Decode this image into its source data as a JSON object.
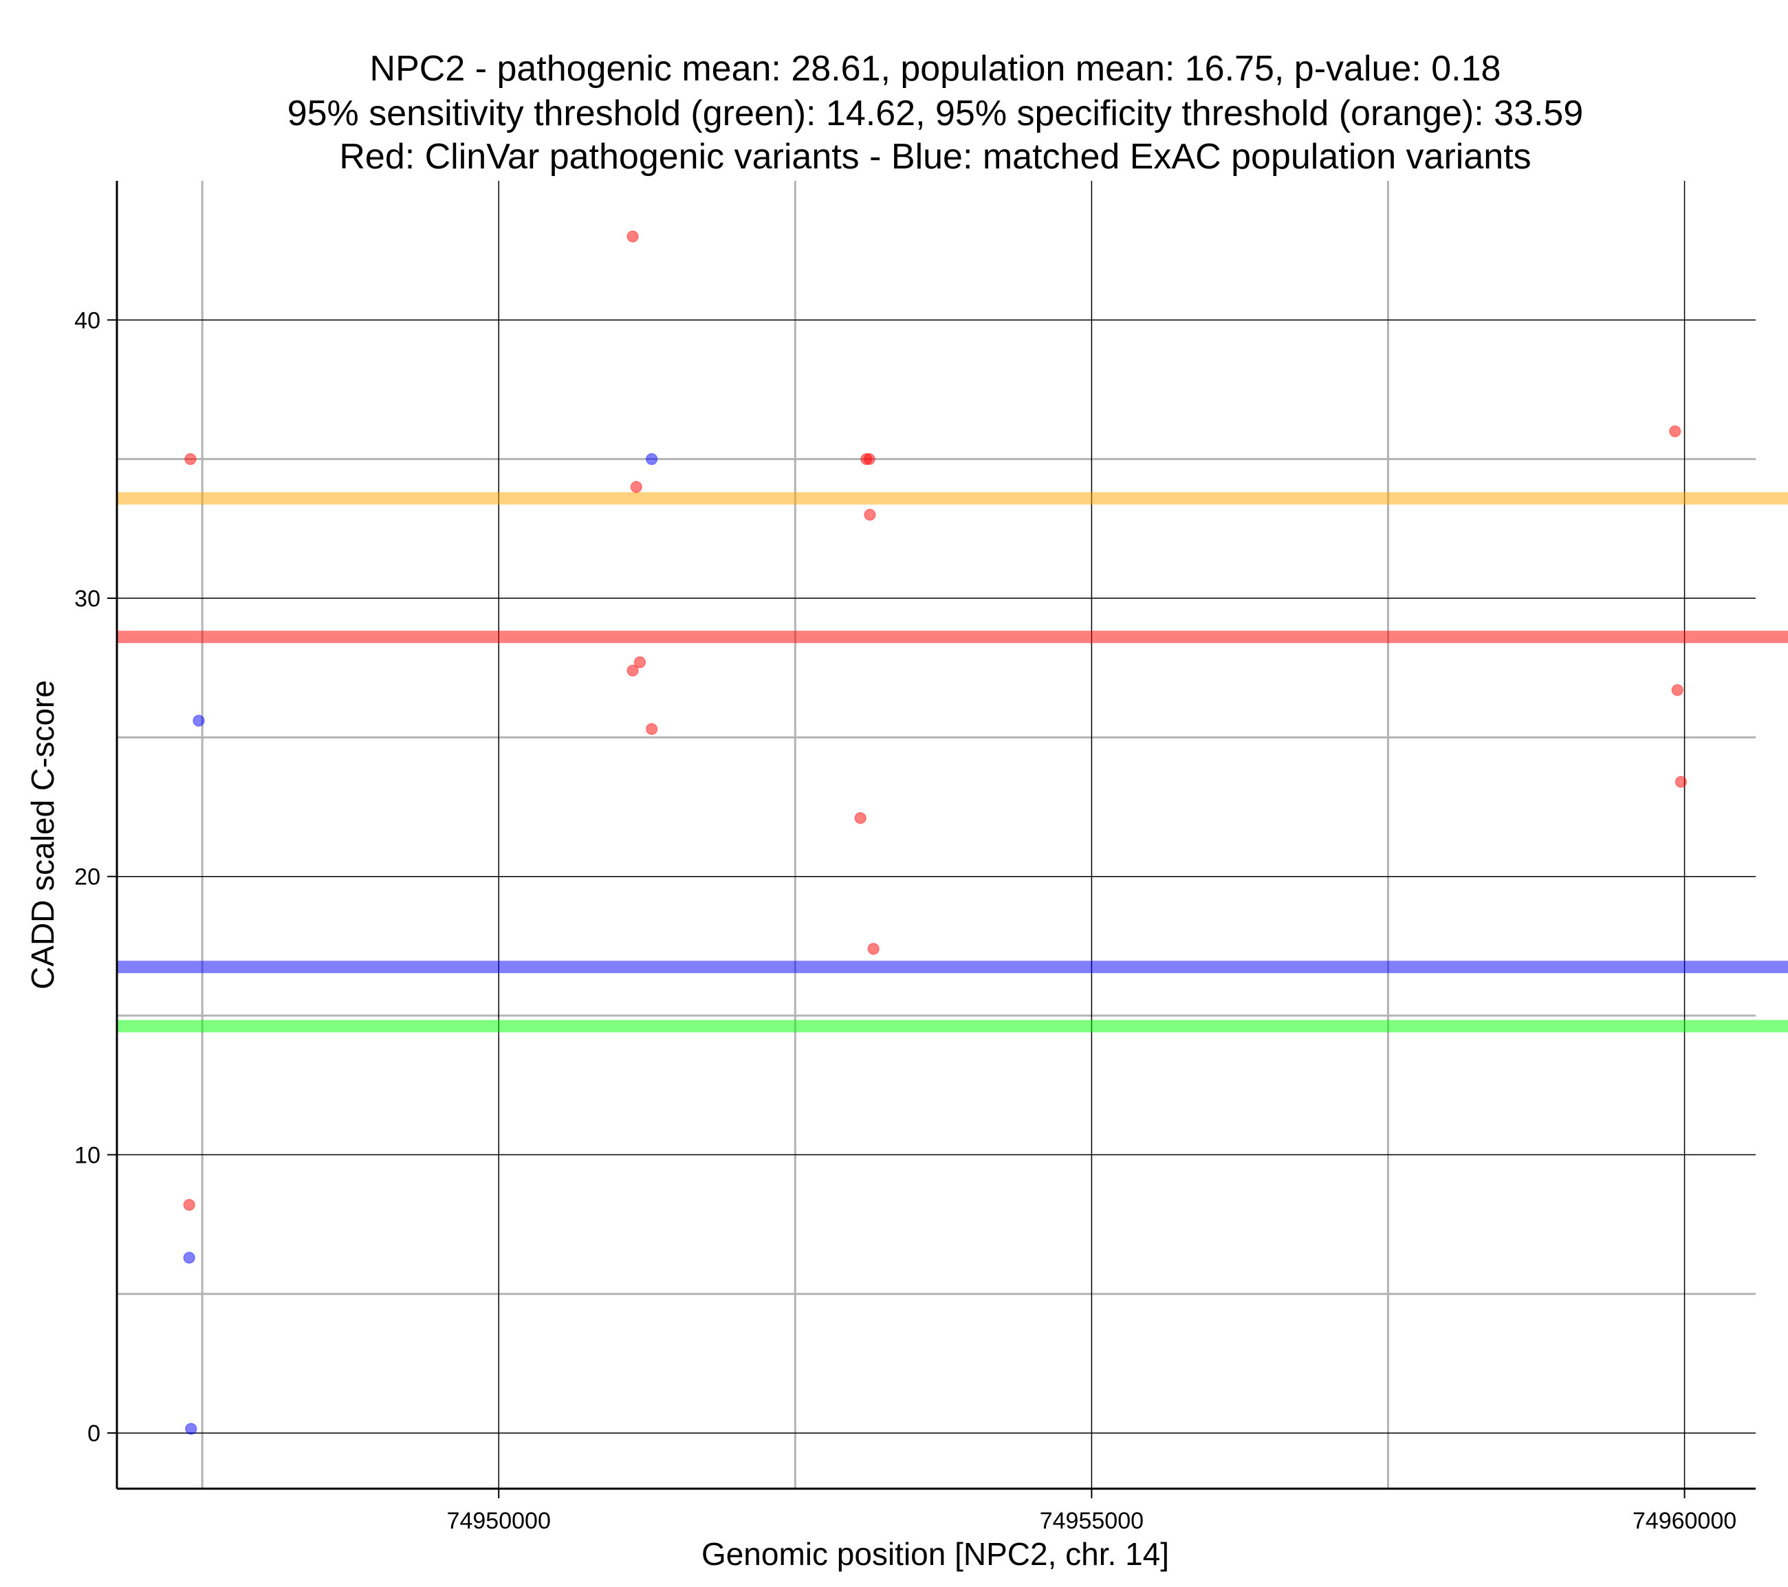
{
  "chart_data": {
    "type": "scatter",
    "title_lines": [
      "NPC2 - pathogenic mean: 28.61, population mean: 16.75, p-value: 0.18",
      "95% sensitivity threshold (green): 14.62, 95% specificity threshold (orange): 33.59",
      "Red: ClinVar pathogenic variants - Blue: matched ExAC population variants"
    ],
    "xlabel": "Genomic position [NPC2, chr. 14]",
    "ylabel": "CADD scaled C-score",
    "xlim": [
      74946780,
      74960600
    ],
    "ylim": [
      -2,
      45
    ],
    "x_major_ticks": [
      74950000,
      74955000,
      74960000
    ],
    "x_tick_labels": [
      "74950000",
      "74955000",
      "74960000"
    ],
    "x_minor_grid": [
      74947500,
      74952500,
      74957500
    ],
    "y_major_ticks": [
      0,
      10,
      20,
      30,
      40
    ],
    "y_tick_labels": [
      "0",
      "10",
      "20",
      "30",
      "40"
    ],
    "y_minor_grid": [
      5,
      15,
      25,
      35
    ],
    "grid": true,
    "colors": {
      "pathogenic": "#ff0000",
      "population": "#0000ff",
      "orange_line": "#ffa500",
      "green_line": "#00ff00",
      "major_grid": "#000000",
      "minor_grid": "#b3b3b3"
    },
    "hlines": [
      {
        "name": "specificity threshold (orange)",
        "value": 33.59,
        "color": "#ffa500"
      },
      {
        "name": "pathogenic mean",
        "value": 28.61,
        "color": "#ff0000"
      },
      {
        "name": "population mean",
        "value": 16.75,
        "color": "#0000ff"
      },
      {
        "name": "sensitivity threshold (green)",
        "value": 14.62,
        "color": "#00ff00"
      }
    ],
    "series": [
      {
        "name": "ClinVar pathogenic variants",
        "color": "#ff0000",
        "points": [
          {
            "x": 74947400,
            "y": 35.0
          },
          {
            "x": 74947390,
            "y": 8.2
          },
          {
            "x": 74951130,
            "y": 43.0
          },
          {
            "x": 74951160,
            "y": 34.0
          },
          {
            "x": 74951130,
            "y": 27.4
          },
          {
            "x": 74951190,
            "y": 27.7
          },
          {
            "x": 74951290,
            "y": 25.3
          },
          {
            "x": 74953100,
            "y": 35.0
          },
          {
            "x": 74953125,
            "y": 35.0
          },
          {
            "x": 74953130,
            "y": 33.0
          },
          {
            "x": 74953050,
            "y": 22.1
          },
          {
            "x": 74953160,
            "y": 17.4
          },
          {
            "x": 74959920,
            "y": 36.0
          },
          {
            "x": 74959940,
            "y": 26.7
          },
          {
            "x": 74959970,
            "y": 23.4
          }
        ]
      },
      {
        "name": "matched ExAC population variants",
        "color": "#0000ff",
        "points": [
          {
            "x": 74951290,
            "y": 35.0
          },
          {
            "x": 74947470,
            "y": 25.6
          },
          {
            "x": 74947390,
            "y": 6.3
          },
          {
            "x": 74947405,
            "y": 0.15
          }
        ]
      }
    ]
  }
}
